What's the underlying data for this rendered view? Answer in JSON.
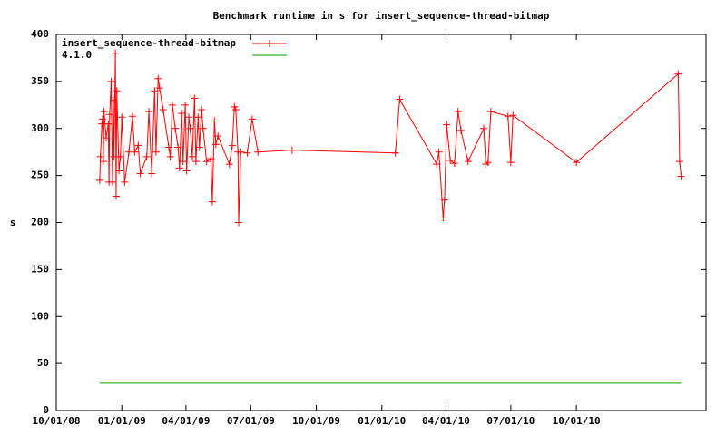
{
  "chart_data": {
    "type": "line",
    "title": "Benchmark runtime in s for insert_sequence-thread-bitmap",
    "y_label": "s",
    "xlim": [
      "10/01/08",
      "04/01/11"
    ],
    "xticks": [
      "10/01/08",
      "01/01/09",
      "04/01/09",
      "07/01/09",
      "10/01/09",
      "01/01/10",
      "04/01/10",
      "07/01/10",
      "10/01/10"
    ],
    "ylim": [
      0,
      400
    ],
    "yticks": [
      0,
      50,
      100,
      150,
      200,
      250,
      300,
      350,
      400
    ],
    "legend": "top-left",
    "series": [
      {
        "name": "insert_sequence-thread-bitmap",
        "color": "#ff0000",
        "marker": "+",
        "x": [
          "12/01/08",
          "12/02/08",
          "12/04/08",
          "12/05/08",
          "12/06/08",
          "12/07/08",
          "12/10/08",
          "12/13/08",
          "12/14/08",
          "12/15/08",
          "12/17/08",
          "12/19/08",
          "12/20/08",
          "12/21/08",
          "12/23/08",
          "12/24/08",
          "12/25/08",
          "12/28/08",
          "12/30/08",
          "01/01/09",
          "01/05/09",
          "01/11/09",
          "01/16/09",
          "01/19/09",
          "01/24/09",
          "01/27/09",
          "02/05/09",
          "02/08/09",
          "02/12/09",
          "02/16/09",
          "02/18/09",
          "02/21/09",
          "02/23/09",
          "02/28/09",
          "03/08/09",
          "03/10/09",
          "03/13/09",
          "03/17/09",
          "03/21/09",
          "03/23/09",
          "03/26/09",
          "03/28/09",
          "03/31/09",
          "04/02/09",
          "04/05/09",
          "04/07/09",
          "04/10/09",
          "04/13/09",
          "04/15/09",
          "04/18/09",
          "04/20/09",
          "04/23/09",
          "04/25/09",
          "04/30/09",
          "05/06/09",
          "05/08/09",
          "05/11/09",
          "05/13/09",
          "05/16/09",
          "06/01/09",
          "06/05/09",
          "06/08/09",
          "06/10/09",
          "06/13/09",
          "06/14/09",
          "06/17/09",
          "06/26/09",
          "07/03/09",
          "07/11/09",
          "08/28/09",
          "01/20/10",
          "01/26/10",
          "03/19/10",
          "03/22/10",
          "03/28/10",
          "03/30/10",
          "04/02/10",
          "04/07/10",
          "04/13/10",
          "04/18/10",
          "04/22/10",
          "05/02/10",
          "05/24/10",
          "05/27/10",
          "05/30/10",
          "06/03/10",
          "06/27/10",
          "07/01/10",
          "07/04/10",
          "10/01/10",
          "02/21/11",
          "02/23/11",
          "02/25/11"
        ],
        "values": [
          245,
          270,
          305,
          310,
          265,
          318,
          290,
          305,
          243,
          315,
          350,
          243,
          330,
          270,
          380,
          228,
          340,
          255,
          270,
          312,
          243,
          275,
          313,
          275,
          282,
          252,
          270,
          318,
          252,
          340,
          275,
          353,
          343,
          320,
          280,
          270,
          325,
          300,
          280,
          258,
          316,
          265,
          325,
          255,
          312,
          300,
          270,
          332,
          265,
          312,
          280,
          320,
          300,
          265,
          268,
          222,
          308,
          283,
          292,
          262,
          282,
          323,
          320,
          275,
          200,
          275,
          274,
          310,
          275,
          277,
          274,
          331,
          262,
          275,
          205,
          224,
          304,
          266,
          263,
          318,
          298,
          265,
          300,
          262,
          264,
          318,
          313,
          264,
          314,
          264,
          358,
          265,
          249
        ]
      },
      {
        "name": "4.1.0",
        "color": "#00a000",
        "x": [
          "12/01/08",
          "02/25/11"
        ],
        "values": [
          29,
          29
        ]
      }
    ]
  }
}
